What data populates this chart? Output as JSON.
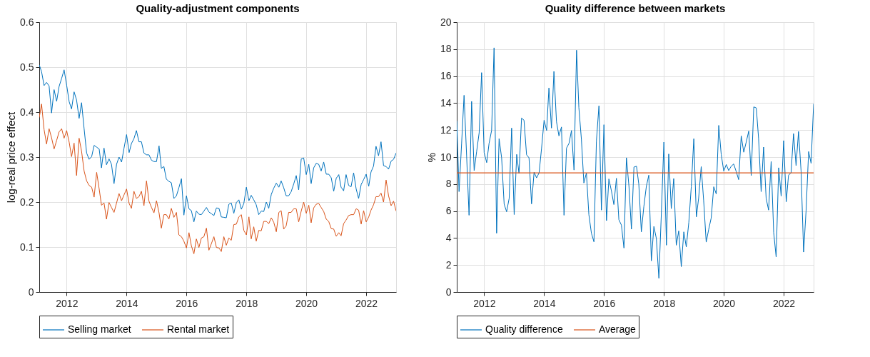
{
  "chart_data": [
    {
      "type": "line",
      "title": "Quality-adjustment components",
      "ylabel": "log-real price effect",
      "x": [
        "2011-02",
        "2011-03",
        "2011-04",
        "2011-05",
        "2011-06",
        "2011-07",
        "2011-08",
        "2011-09",
        "2011-10",
        "2011-11",
        "2011-12",
        "2012-01",
        "2012-02",
        "2012-03",
        "2012-04",
        "2012-05",
        "2012-06",
        "2012-07",
        "2012-08",
        "2012-09",
        "2012-10",
        "2012-11",
        "2012-12",
        "2013-01",
        "2013-02",
        "2013-03",
        "2013-04",
        "2013-05",
        "2013-06",
        "2013-07",
        "2013-08",
        "2013-09",
        "2013-10",
        "2013-11",
        "2013-12",
        "2014-01",
        "2014-02",
        "2014-03",
        "2014-04",
        "2014-05",
        "2014-06",
        "2014-07",
        "2014-08",
        "2014-09",
        "2014-10",
        "2014-11",
        "2014-12",
        "2015-01",
        "2015-02",
        "2015-03",
        "2015-04",
        "2015-05",
        "2015-06",
        "2015-07",
        "2015-08",
        "2015-09",
        "2015-10",
        "2015-11",
        "2015-12",
        "2016-01",
        "2016-02",
        "2016-03",
        "2016-04",
        "2016-05",
        "2016-06",
        "2016-07",
        "2016-08",
        "2016-09",
        "2016-10",
        "2016-11",
        "2016-12",
        "2017-01",
        "2017-02",
        "2017-03",
        "2017-04",
        "2017-05",
        "2017-06",
        "2017-07",
        "2017-08",
        "2017-09",
        "2017-10",
        "2017-11",
        "2017-12",
        "2018-01",
        "2018-02",
        "2018-03",
        "2018-04",
        "2018-05",
        "2018-06",
        "2018-07",
        "2018-08",
        "2018-09",
        "2018-10",
        "2018-11",
        "2018-12",
        "2019-01",
        "2019-02",
        "2019-03",
        "2019-04",
        "2019-05",
        "2019-06",
        "2019-07",
        "2019-08",
        "2019-09",
        "2019-10",
        "2019-11",
        "2019-12",
        "2020-01",
        "2020-02",
        "2020-03",
        "2020-04",
        "2020-05",
        "2020-06",
        "2020-07",
        "2020-08",
        "2020-09",
        "2020-10",
        "2020-11",
        "2020-12",
        "2021-01",
        "2021-02",
        "2021-03",
        "2021-04",
        "2021-05",
        "2021-06",
        "2021-07",
        "2021-08",
        "2021-09",
        "2021-10",
        "2021-11",
        "2021-12",
        "2022-01",
        "2022-02",
        "2022-03",
        "2022-04",
        "2022-05",
        "2022-06",
        "2022-07",
        "2022-08",
        "2022-09",
        "2022-10",
        "2022-11",
        "2022-12",
        "2023-01"
      ],
      "series": [
        {
          "name": "Selling market",
          "color": "#0072bd",
          "values": [
            0.505,
            0.49,
            0.459,
            0.466,
            0.458,
            0.398,
            0.45,
            0.424,
            0.457,
            0.475,
            0.494,
            0.46,
            0.423,
            0.407,
            0.445,
            0.427,
            0.386,
            0.421,
            0.363,
            0.309,
            0.295,
            0.301,
            0.326,
            0.322,
            0.318,
            0.276,
            0.32,
            0.283,
            0.296,
            0.284,
            0.241,
            0.284,
            0.3,
            0.289,
            0.32,
            0.35,
            0.31,
            0.33,
            0.341,
            0.359,
            0.334,
            0.334,
            0.309,
            0.305,
            0.305,
            0.293,
            0.29,
            0.29,
            0.325,
            0.275,
            0.279,
            0.251,
            0.246,
            0.243,
            0.208,
            0.214,
            0.232,
            0.252,
            0.171,
            0.214,
            0.185,
            0.181,
            0.156,
            0.18,
            0.173,
            0.172,
            0.18,
            0.188,
            0.178,
            0.174,
            0.17,
            0.187,
            0.186,
            0.167,
            0.166,
            0.165,
            0.195,
            0.198,
            0.175,
            0.199,
            0.205,
            0.184,
            0.197,
            0.233,
            0.203,
            0.215,
            0.205,
            0.194,
            0.172,
            0.18,
            0.179,
            0.2,
            0.186,
            0.217,
            0.231,
            0.242,
            0.233,
            0.247,
            0.232,
            0.214,
            0.214,
            0.223,
            0.24,
            0.259,
            0.227,
            0.296,
            0.298,
            0.261,
            0.284,
            0.241,
            0.276,
            0.286,
            0.284,
            0.269,
            0.289,
            0.262,
            0.262,
            0.254,
            0.224,
            0.253,
            0.261,
            0.233,
            0.225,
            0.261,
            0.237,
            0.234,
            0.265,
            0.229,
            0.208,
            0.239,
            0.25,
            0.262,
            0.235,
            0.267,
            0.28,
            0.324,
            0.303,
            0.334,
            0.281,
            0.279,
            0.273,
            0.291,
            0.295,
            0.309
          ]
        },
        {
          "name": "Rental market",
          "color": "#d95319",
          "values": [
            0.388,
            0.418,
            0.361,
            0.329,
            0.363,
            0.343,
            0.318,
            0.337,
            0.356,
            0.363,
            0.342,
            0.359,
            0.333,
            0.301,
            0.331,
            0.259,
            0.342,
            0.313,
            0.269,
            0.247,
            0.237,
            0.233,
            0.211,
            0.266,
            0.229,
            0.193,
            0.198,
            0.162,
            0.199,
            0.188,
            0.177,
            0.198,
            0.219,
            0.203,
            0.216,
            0.229,
            0.197,
            0.186,
            0.224,
            0.208,
            0.212,
            0.224,
            0.192,
            0.247,
            0.202,
            0.188,
            0.176,
            0.203,
            0.176,
            0.142,
            0.172,
            0.172,
            0.162,
            0.186,
            0.166,
            0.177,
            0.127,
            0.123,
            0.113,
            0.098,
            0.132,
            0.103,
            0.085,
            0.118,
            0.099,
            0.12,
            0.123,
            0.142,
            0.093,
            0.108,
            0.123,
            0.099,
            0.098,
            0.09,
            0.123,
            0.104,
            0.12,
            0.115,
            0.15,
            0.151,
            0.167,
            0.172,
            0.137,
            0.127,
            0.167,
            0.118,
            0.145,
            0.113,
            0.137,
            0.136,
            0.157,
            0.157,
            0.152,
            0.165,
            0.155,
            0.134,
            0.177,
            0.181,
            0.14,
            0.147,
            0.177,
            0.177,
            0.185,
            0.185,
            0.156,
            0.18,
            0.2,
            0.175,
            0.193,
            0.154,
            0.187,
            0.195,
            0.197,
            0.188,
            0.179,
            0.162,
            0.157,
            0.141,
            0.14,
            0.124,
            0.132,
            0.125,
            0.152,
            0.16,
            0.17,
            0.172,
            0.172,
            0.185,
            0.182,
            0.151,
            0.181,
            0.156,
            0.167,
            0.182,
            0.194,
            0.212,
            0.212,
            0.22,
            0.2,
            0.249,
            0.214,
            0.192,
            0.202,
            0.18
          ]
        }
      ],
      "xlim": [
        "2011-02",
        "2023-01"
      ],
      "xticks": [
        "2012",
        "2014",
        "2016",
        "2018",
        "2020",
        "2022"
      ],
      "ylim": [
        0,
        0.6
      ],
      "yticks": [
        0,
        0.1,
        0.2,
        0.3,
        0.4,
        0.5,
        0.6
      ],
      "grid": true,
      "legend": "bottom",
      "line_style": "solid",
      "marker": "none"
    },
    {
      "type": "line",
      "title": "Quality difference between markets",
      "ylabel": "%",
      "x": [
        "2011-02",
        "2011-03",
        "2011-04",
        "2011-05",
        "2011-06",
        "2011-07",
        "2011-08",
        "2011-09",
        "2011-10",
        "2011-11",
        "2011-12",
        "2012-01",
        "2012-02",
        "2012-03",
        "2012-04",
        "2012-05",
        "2012-06",
        "2012-07",
        "2012-08",
        "2012-09",
        "2012-10",
        "2012-11",
        "2012-12",
        "2013-01",
        "2013-02",
        "2013-03",
        "2013-04",
        "2013-05",
        "2013-06",
        "2013-07",
        "2013-08",
        "2013-09",
        "2013-10",
        "2013-11",
        "2013-12",
        "2014-01",
        "2014-02",
        "2014-03",
        "2014-04",
        "2014-05",
        "2014-06",
        "2014-07",
        "2014-08",
        "2014-09",
        "2014-10",
        "2014-11",
        "2014-12",
        "2015-01",
        "2015-02",
        "2015-03",
        "2015-04",
        "2015-05",
        "2015-06",
        "2015-07",
        "2015-08",
        "2015-09",
        "2015-10",
        "2015-11",
        "2015-12",
        "2016-01",
        "2016-02",
        "2016-03",
        "2016-04",
        "2016-05",
        "2016-06",
        "2016-07",
        "2016-08",
        "2016-09",
        "2016-10",
        "2016-11",
        "2016-12",
        "2017-01",
        "2017-02",
        "2017-03",
        "2017-04",
        "2017-05",
        "2017-06",
        "2017-07",
        "2017-08",
        "2017-09",
        "2017-10",
        "2017-11",
        "2017-12",
        "2018-01",
        "2018-02",
        "2018-03",
        "2018-04",
        "2018-05",
        "2018-06",
        "2018-07",
        "2018-08",
        "2018-09",
        "2018-10",
        "2018-11",
        "2018-12",
        "2019-01",
        "2019-02",
        "2019-03",
        "2019-04",
        "2019-05",
        "2019-06",
        "2019-07",
        "2019-08",
        "2019-09",
        "2019-10",
        "2019-11",
        "2019-12",
        "2020-01",
        "2020-02",
        "2020-03",
        "2020-04",
        "2020-05",
        "2020-06",
        "2020-07",
        "2020-08",
        "2020-09",
        "2020-10",
        "2020-11",
        "2020-12",
        "2021-01",
        "2021-02",
        "2021-03",
        "2021-04",
        "2021-05",
        "2021-06",
        "2021-07",
        "2021-08",
        "2021-09",
        "2021-10",
        "2021-11",
        "2021-12",
        "2022-01",
        "2022-02",
        "2022-03",
        "2022-04",
        "2022-05",
        "2022-06",
        "2022-07",
        "2022-08",
        "2022-09",
        "2022-10",
        "2022-11",
        "2022-12",
        "2023-01"
      ],
      "series": [
        {
          "name": "Quality difference",
          "color": "#0072bd",
          "values": [
            12.68,
            7.44,
            11.0,
            14.58,
            10.1,
            5.69,
            14.13,
            9.0,
            10.4,
            11.8,
            16.26,
            10.33,
            9.59,
            11.02,
            11.98,
            18.1,
            4.36,
            11.36,
            9.95,
            6.51,
            5.95,
            6.94,
            12.15,
            5.74,
            10.2,
            8.79,
            12.89,
            12.73,
            10.17,
            9.95,
            6.53,
            8.88,
            8.46,
            8.83,
            10.64,
            12.73,
            11.97,
            15.12,
            12.15,
            16.35,
            12.63,
            11.57,
            12.23,
            5.69,
            10.66,
            11.02,
            11.97,
            9.04,
            17.92,
            13.67,
            11.32,
            8.08,
            8.83,
            5.74,
            4.36,
            3.72,
            11.19,
            13.8,
            6.07,
            12.4,
            5.29,
            8.38,
            7.5,
            6.48,
            8.43,
            5.36,
            4.96,
            3.26,
            9.95,
            7.83,
            4.66,
            9.26,
            9.32,
            8.0,
            4.46,
            6.31,
            7.83,
            8.66,
            2.31,
            4.86,
            3.97,
            1.02,
            5.82,
            11.11,
            3.47,
            10.23,
            6.18,
            8.41,
            3.47,
            4.53,
            1.88,
            4.46,
            3.34,
            5.16,
            7.8,
            11.36,
            5.57,
            6.98,
            9.29,
            6.78,
            3.7,
            4.63,
            5.49,
            7.8,
            7.27,
            12.35,
            10.2,
            8.96,
            9.45,
            9.0,
            9.32,
            9.49,
            8.93,
            8.33,
            11.57,
            10.36,
            11.11,
            11.93,
            8.63,
            13.72,
            13.64,
            11.36,
            7.44,
            10.74,
            6.94,
            6.07,
            9.67,
            4.41,
            2.6,
            9.21,
            7.11,
            11.22,
            6.69,
            8.66,
            8.83,
            11.74,
            9.37,
            11.9,
            8.96,
            2.96,
            6.02,
            10.41,
            9.54,
            13.95
          ]
        }
      ],
      "ref_lines": [
        {
          "axis": "y",
          "value": 8.83,
          "label": "Average",
          "color": "#d95319",
          "line_style": "solid"
        }
      ],
      "xlim": [
        "2011-02",
        "2023-01"
      ],
      "xticks": [
        "2012",
        "2014",
        "2016",
        "2018",
        "2020",
        "2022"
      ],
      "ylim": [
        0,
        20
      ],
      "yticks": [
        0,
        2,
        4,
        6,
        8,
        10,
        12,
        14,
        16,
        18,
        20
      ],
      "grid": true,
      "legend": "bottom",
      "line_style": "solid",
      "marker": "none"
    }
  ]
}
